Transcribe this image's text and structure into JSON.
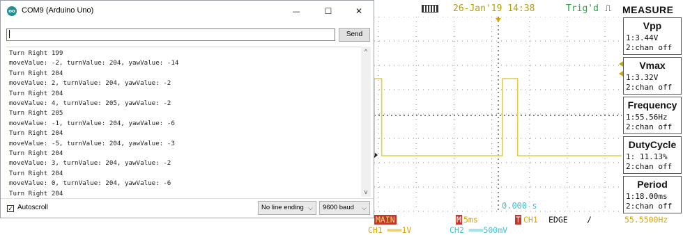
{
  "serial_monitor": {
    "app_icon": "arduino-icon",
    "app_icon_text": "oo",
    "title": "COM9 (Arduino Uno)",
    "window_controls": {
      "minimize": "—",
      "maximize": "☐",
      "close": "✕"
    },
    "input": {
      "value": ""
    },
    "send_label": "Send",
    "output_lines": [
      "Turn Right 199",
      "moveValue: -2, turnValue: 204, yawValue: -14",
      "Turn Right 204",
      "moveValue: 2, turnValue: 204, yawValue: -2",
      "Turn Right 204",
      "moveValue: 4, turnValue: 205, yawValue: -2",
      "Turn Right 205",
      "moveValue: -1, turnValue: 204, yawValue: -6",
      "Turn Right 204",
      "moveValue: -5, turnValue: 204, yawValue: -3",
      "Turn Right 204",
      "moveValue: 3, turnValue: 204, yawValue: -2",
      "Turn Right 204",
      "moveValue: 0, turnValue: 204, yawValue: -6",
      "Turn Right 204"
    ],
    "scroll_up": "^",
    "scroll_down": "v",
    "autoscroll": {
      "checked": true,
      "check_glyph": "✓",
      "label": "Autoscroll"
    },
    "line_ending": {
      "selected": "No line ending",
      "chevron": "⌵"
    },
    "baud": {
      "selected": "9600 baud",
      "chevron": "⌵"
    }
  },
  "oscilloscope": {
    "usb_icon": "usb-icon",
    "date": "26-Jan'19 14:38",
    "trigger_status": "Trig'd",
    "trigger_icon": "⎍",
    "measure_title": "MEASURE",
    "measurements": [
      {
        "name": "Vpp",
        "value": "1:3.44V",
        "source2": "2:chan off"
      },
      {
        "name": "Vmax",
        "value": "1:3.32V",
        "source2": "2:chan off"
      },
      {
        "name": "Frequency",
        "value": "1:55.56Hz",
        "source2": "2:chan off"
      },
      {
        "name": "DutyCycle",
        "value": "1: 11.13%",
        "source2": "2:chan off"
      },
      {
        "name": "Period",
        "value": "1:18.00ms",
        "source2": "2:chan off"
      }
    ],
    "status": {
      "mode": "MAIN",
      "m_marker": "M",
      "timebase": "5ms",
      "t_marker": "T",
      "trigger_source": "CH1",
      "trigger_type": "EDGE",
      "slope_icon": "/",
      "trigger_frequency": "55.5500Hz",
      "ch1_scale": "CH1 ═══1V",
      "ch2_scale": "CH2 ═══500mV"
    },
    "time_readout": "0.000 s",
    "colors": {
      "trace": "#e2cf3e",
      "grid": "#8a8a8a",
      "accent_cyan": "#3cc3d9",
      "accent_gold": "#d4a600",
      "marker_red": "#c0392b"
    },
    "waveform": {
      "type": "line",
      "time_per_div_ms": 5,
      "volts_per_div": 1,
      "period_ms": 18,
      "duty_cycle_percent": 11.13,
      "vmax_v": 3.32,
      "vpp_v": 3.44
    }
  }
}
